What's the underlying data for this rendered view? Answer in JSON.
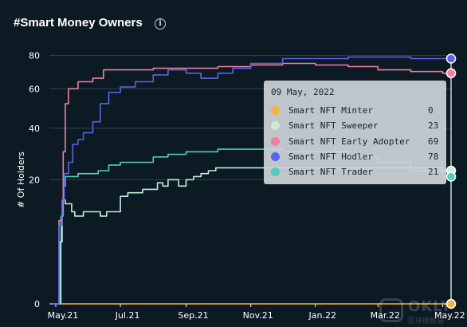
{
  "header": {
    "title": "#Smart Money Owners",
    "info_icon": "info-icon"
  },
  "colors": {
    "background": "#0c1a24",
    "grid": "#33424c",
    "axis": "#ffffff",
    "crosshair": "#ffffff"
  },
  "tooltip": {
    "date": "09 May, 2022",
    "rows": [
      {
        "name": "Smart NFT Minter",
        "value": "0",
        "color": "#f5b23c"
      },
      {
        "name": "Smart NFT Sweeper",
        "value": "23",
        "color": "#c6ecd7"
      },
      {
        "name": "Smart NFT Early Adopter",
        "value": "69",
        "color": "#f27ea0"
      },
      {
        "name": "Smart NFT Hodler",
        "value": "78",
        "color": "#5b63ea"
      },
      {
        "name": "Smart NFT Trader",
        "value": "21",
        "color": "#4fcfbf"
      }
    ]
  },
  "chart_data": {
    "type": "line",
    "title": "#Smart Money Owners",
    "xlabel": "",
    "ylabel": "# Of Holders",
    "y_scale": "sqrt",
    "ylim": [
      0,
      85
    ],
    "y_ticks": [
      0,
      20,
      40,
      60,
      80
    ],
    "x_ticks": [
      "May.21",
      "Jul.21",
      "Sep.21",
      "Nov.21",
      "Jan.22",
      "Mar.22",
      "May.22"
    ],
    "x_tick_dates": [
      "2021-05-01",
      "2021-07-01",
      "2021-09-01",
      "2021-11-01",
      "2022-01-01",
      "2022-03-01",
      "2022-05-01"
    ],
    "xlim": [
      "2021-04-25",
      "2022-05-09"
    ],
    "grid": true,
    "legend": "none",
    "hover_date": "2022-05-09",
    "series": [
      {
        "name": "Smart NFT Minter",
        "color": "#f5b23c",
        "points": [
          [
            "2021-04-25",
            0
          ],
          [
            "2022-05-09",
            0
          ]
        ]
      },
      {
        "name": "Smart NFT Sweeper",
        "color": "#c6ecd7",
        "points": [
          [
            "2021-04-25",
            0
          ],
          [
            "2021-05-02",
            0
          ],
          [
            "2021-05-05",
            5
          ],
          [
            "2021-05-07",
            14
          ],
          [
            "2021-05-10",
            13
          ],
          [
            "2021-05-13",
            13
          ],
          [
            "2021-05-16",
            11
          ],
          [
            "2021-05-19",
            10
          ],
          [
            "2021-05-22",
            10
          ],
          [
            "2021-05-27",
            11
          ],
          [
            "2021-06-05",
            11
          ],
          [
            "2021-06-12",
            10
          ],
          [
            "2021-06-18",
            11
          ],
          [
            "2021-06-25",
            11
          ],
          [
            "2021-07-01",
            15
          ],
          [
            "2021-07-08",
            16
          ],
          [
            "2021-07-15",
            16
          ],
          [
            "2021-07-22",
            17
          ],
          [
            "2021-07-29",
            17
          ],
          [
            "2021-08-05",
            19
          ],
          [
            "2021-08-10",
            18
          ],
          [
            "2021-08-15",
            20
          ],
          [
            "2021-08-20",
            20
          ],
          [
            "2021-08-25",
            18
          ],
          [
            "2021-09-01",
            20
          ],
          [
            "2021-09-08",
            21
          ],
          [
            "2021-09-15",
            22
          ],
          [
            "2021-09-22",
            23
          ],
          [
            "2021-09-29",
            24
          ],
          [
            "2021-10-06",
            24
          ],
          [
            "2021-10-13",
            24
          ],
          [
            "2021-11-01",
            24
          ],
          [
            "2021-12-01",
            24
          ],
          [
            "2022-01-01",
            24
          ],
          [
            "2022-02-01",
            24
          ],
          [
            "2022-03-01",
            24
          ],
          [
            "2022-04-01",
            24
          ],
          [
            "2022-05-01",
            23
          ],
          [
            "2022-05-09",
            23
          ]
        ]
      },
      {
        "name": "Smart NFT Early Adopter",
        "color": "#f27ea0",
        "points": [
          [
            "2021-04-25",
            0
          ],
          [
            "2021-05-02",
            0
          ],
          [
            "2021-05-04",
            9
          ],
          [
            "2021-05-07",
            14
          ],
          [
            "2021-05-08",
            30
          ],
          [
            "2021-05-10",
            52
          ],
          [
            "2021-05-13",
            60
          ],
          [
            "2021-05-17",
            60
          ],
          [
            "2021-05-22",
            64
          ],
          [
            "2021-05-27",
            64
          ],
          [
            "2021-06-05",
            66
          ],
          [
            "2021-06-15",
            71
          ],
          [
            "2021-07-01",
            71
          ],
          [
            "2021-08-01",
            72
          ],
          [
            "2021-09-01",
            72
          ],
          [
            "2021-10-01",
            73
          ],
          [
            "2021-11-01",
            74
          ],
          [
            "2021-12-01",
            75
          ],
          [
            "2022-01-01",
            74
          ],
          [
            "2022-02-01",
            73
          ],
          [
            "2022-03-01",
            71
          ],
          [
            "2022-04-01",
            70
          ],
          [
            "2022-05-01",
            69
          ],
          [
            "2022-05-09",
            69
          ]
        ]
      },
      {
        "name": "Smart NFT Hodler",
        "color": "#5b63ea",
        "points": [
          [
            "2021-04-25",
            0
          ],
          [
            "2021-05-02",
            0
          ],
          [
            "2021-05-04",
            8
          ],
          [
            "2021-05-07",
            14
          ],
          [
            "2021-05-09",
            22
          ],
          [
            "2021-05-13",
            26
          ],
          [
            "2021-05-17",
            33
          ],
          [
            "2021-05-22",
            35
          ],
          [
            "2021-05-27",
            38
          ],
          [
            "2021-06-05",
            43
          ],
          [
            "2021-06-12",
            52
          ],
          [
            "2021-06-20",
            58
          ],
          [
            "2021-07-01",
            61
          ],
          [
            "2021-07-15",
            64
          ],
          [
            "2021-08-01",
            68
          ],
          [
            "2021-08-15",
            71
          ],
          [
            "2021-09-01",
            69
          ],
          [
            "2021-09-15",
            66
          ],
          [
            "2021-10-01",
            69
          ],
          [
            "2021-10-15",
            72
          ],
          [
            "2021-11-01",
            75
          ],
          [
            "2021-12-01",
            78
          ],
          [
            "2022-01-01",
            78
          ],
          [
            "2022-02-01",
            79
          ],
          [
            "2022-03-01",
            79
          ],
          [
            "2022-04-01",
            78
          ],
          [
            "2022-05-01",
            78
          ],
          [
            "2022-05-09",
            78
          ]
        ]
      },
      {
        "name": "Smart NFT Trader",
        "color": "#4fcfbf",
        "points": [
          [
            "2021-04-25",
            0
          ],
          [
            "2021-05-03",
            0
          ],
          [
            "2021-05-06",
            10
          ],
          [
            "2021-05-08",
            18
          ],
          [
            "2021-05-10",
            21
          ],
          [
            "2021-05-15",
            21
          ],
          [
            "2021-05-22",
            22
          ],
          [
            "2021-06-01",
            22
          ],
          [
            "2021-06-10",
            23
          ],
          [
            "2021-06-20",
            25
          ],
          [
            "2021-07-01",
            26
          ],
          [
            "2021-07-15",
            26
          ],
          [
            "2021-08-01",
            28
          ],
          [
            "2021-08-15",
            29
          ],
          [
            "2021-09-01",
            30
          ],
          [
            "2021-09-15",
            30
          ],
          [
            "2021-10-01",
            31
          ],
          [
            "2021-11-01",
            31
          ],
          [
            "2021-12-01",
            30
          ],
          [
            "2022-01-01",
            30
          ],
          [
            "2022-02-01",
            28
          ],
          [
            "2022-03-01",
            26
          ],
          [
            "2022-04-01",
            23
          ],
          [
            "2022-05-01",
            21
          ],
          [
            "2022-05-09",
            21
          ]
        ]
      }
    ]
  },
  "watermark": {
    "text": "OKLY",
    "sub": "区块链数据"
  }
}
